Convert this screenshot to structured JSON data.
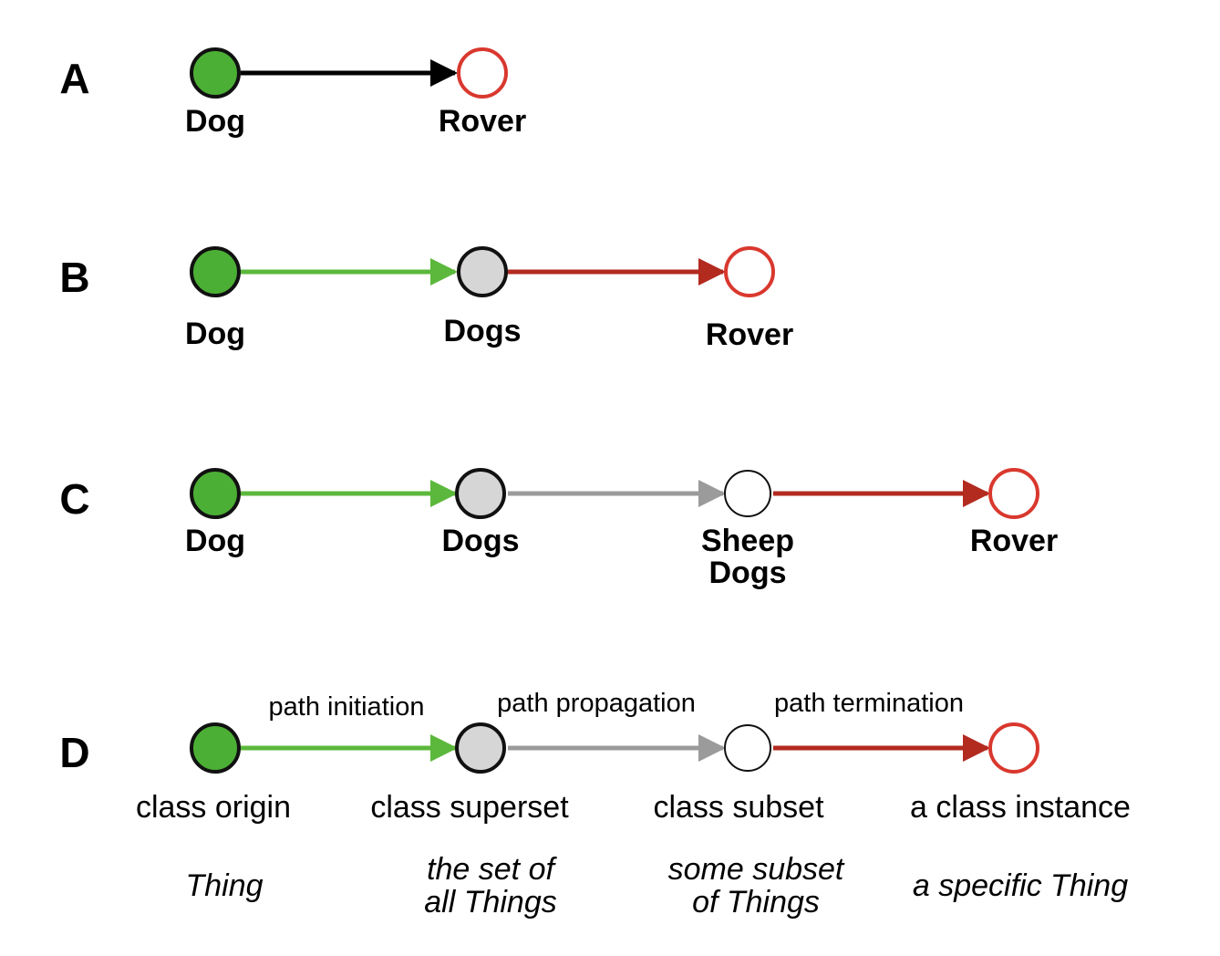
{
  "colors": {
    "origin_fill": "#4caf35",
    "superset_fill": "#d6d6d6",
    "subset_fill": "#ffffff",
    "instance_stroke": "#d9382e",
    "initiation_edge": "#5cb83c",
    "propagation_edge": "#9b9b9b",
    "termination_edge": "#b32a1f",
    "generic_edge": "#000000"
  },
  "rows": {
    "A": {
      "label": "A",
      "nodes": [
        "Dog",
        "Rover"
      ]
    },
    "B": {
      "label": "B",
      "nodes": [
        "Dog",
        "Dogs",
        "Rover"
      ]
    },
    "C": {
      "label": "C",
      "nodes": [
        "Dog",
        "Dogs",
        "Sheep",
        "Dogs",
        "Rover"
      ]
    },
    "D": {
      "label": "D",
      "edges": [
        "path initiation",
        "path propagation",
        "path termination"
      ],
      "roles": [
        "class origin",
        "class superset",
        "class subset",
        "a class instance"
      ],
      "descriptions": [
        "Thing",
        "the set of",
        "all Things",
        "some subset",
        "of Things",
        "a specific Thing"
      ]
    }
  }
}
